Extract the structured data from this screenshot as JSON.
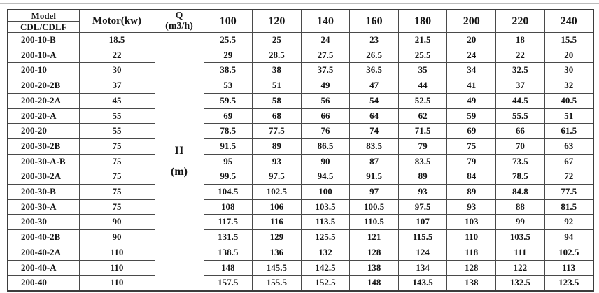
{
  "page": {
    "background": "#ffffff",
    "top_rule_color": "#bcbcbc",
    "border_color": "#4a4a4a",
    "text_color": "#151515"
  },
  "table": {
    "header": {
      "model_label": "Model",
      "model_series": "CDL/CDLF",
      "motor_label": "Motor(kw)",
      "q_symbol": "Q",
      "q_unit": "(m3/h)",
      "flow_columns": [
        "100",
        "120",
        "140",
        "160",
        "180",
        "200",
        "220",
        "240"
      ]
    },
    "head_column": {
      "symbol": "H",
      "unit": "(m)"
    },
    "rows": [
      {
        "model": "200-10-B",
        "motor": "18.5",
        "values": [
          "25.5",
          "25",
          "24",
          "23",
          "21.5",
          "20",
          "18",
          "15.5"
        ]
      },
      {
        "model": "200-10-A",
        "motor": "22",
        "values": [
          "29",
          "28.5",
          "27.5",
          "26.5",
          "25.5",
          "24",
          "22",
          "20"
        ]
      },
      {
        "model": "200-10",
        "motor": "30",
        "values": [
          "38.5",
          "38",
          "37.5",
          "36.5",
          "35",
          "34",
          "32.5",
          "30"
        ]
      },
      {
        "model": "200-20-2B",
        "motor": "37",
        "values": [
          "53",
          "51",
          "49",
          "47",
          "44",
          "41",
          "37",
          "32"
        ]
      },
      {
        "model": "200-20-2A",
        "motor": "45",
        "values": [
          "59.5",
          "58",
          "56",
          "54",
          "52.5",
          "49",
          "44.5",
          "40.5"
        ]
      },
      {
        "model": "200-20-A",
        "motor": "55",
        "values": [
          "69",
          "68",
          "66",
          "64",
          "62",
          "59",
          "55.5",
          "51"
        ]
      },
      {
        "model": "200-20",
        "motor": "55",
        "values": [
          "78.5",
          "77.5",
          "76",
          "74",
          "71.5",
          "69",
          "66",
          "61.5"
        ]
      },
      {
        "model": "200-30-2B",
        "motor": "75",
        "values": [
          "91.5",
          "89",
          "86.5",
          "83.5",
          "79",
          "75",
          "70",
          "63"
        ]
      },
      {
        "model": "200-30-A-B",
        "motor": "75",
        "values": [
          "95",
          "93",
          "90",
          "87",
          "83.5",
          "79",
          "73.5",
          "67"
        ]
      },
      {
        "model": "200-30-2A",
        "motor": "75",
        "values": [
          "99.5",
          "97.5",
          "94.5",
          "91.5",
          "89",
          "84",
          "78.5",
          "72"
        ]
      },
      {
        "model": "200-30-B",
        "motor": "75",
        "values": [
          "104.5",
          "102.5",
          "100",
          "97",
          "93",
          "89",
          "84.8",
          "77.5"
        ]
      },
      {
        "model": "200-30-A",
        "motor": "75",
        "values": [
          "108",
          "106",
          "103.5",
          "100.5",
          "97.5",
          "93",
          "88",
          "81.5"
        ]
      },
      {
        "model": "200-30",
        "motor": "90",
        "values": [
          "117.5",
          "116",
          "113.5",
          "110.5",
          "107",
          "103",
          "99",
          "92"
        ]
      },
      {
        "model": "200-40-2B",
        "motor": "90",
        "values": [
          "131.5",
          "129",
          "125.5",
          "121",
          "115.5",
          "110",
          "103.5",
          "94"
        ]
      },
      {
        "model": "200-40-2A",
        "motor": "110",
        "values": [
          "138.5",
          "136",
          "132",
          "128",
          "124",
          "118",
          "111",
          "102.5"
        ]
      },
      {
        "model": "200-40-A",
        "motor": "110",
        "values": [
          "148",
          "145.5",
          "142.5",
          "138",
          "134",
          "128",
          "122",
          "113"
        ]
      },
      {
        "model": "200-40",
        "motor": "110",
        "values": [
          "157.5",
          "155.5",
          "152.5",
          "148",
          "143.5",
          "138",
          "132.5",
          "123.5"
        ]
      }
    ]
  }
}
